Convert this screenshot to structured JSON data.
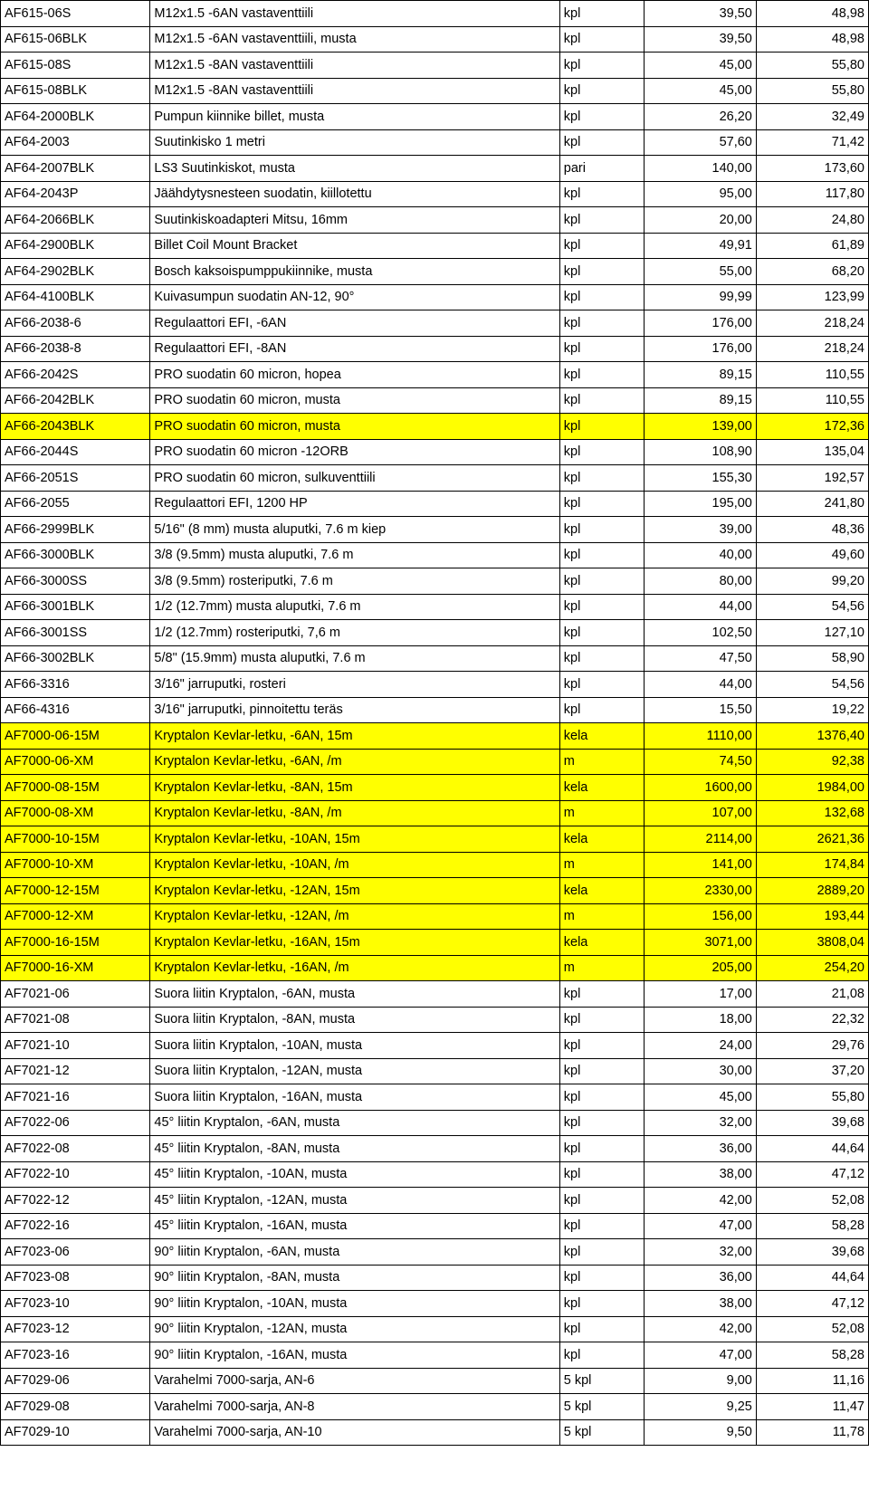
{
  "colors": {
    "highlight": "#ffff00",
    "border": "#000000",
    "bg": "#ffffff",
    "text": "#000000"
  },
  "columns": {
    "widths": [
      128,
      350,
      72,
      96,
      96
    ],
    "align": [
      "left",
      "left",
      "left",
      "right",
      "right"
    ]
  },
  "rows": [
    {
      "h": 0,
      "c": [
        "AF615-06S",
        "M12x1.5 -6AN vastaventtiili",
        "kpl",
        "39,50",
        "48,98"
      ]
    },
    {
      "h": 0,
      "c": [
        "AF615-06BLK",
        "M12x1.5 -6AN vastaventtiili, musta",
        "kpl",
        "39,50",
        "48,98"
      ]
    },
    {
      "h": 0,
      "c": [
        "AF615-08S",
        "M12x1.5 -8AN vastaventtiili",
        "kpl",
        "45,00",
        "55,80"
      ]
    },
    {
      "h": 0,
      "c": [
        "AF615-08BLK",
        "M12x1.5 -8AN vastaventtiili",
        "kpl",
        "45,00",
        "55,80"
      ]
    },
    {
      "h": 0,
      "c": [
        "AF64-2000BLK",
        "Pumpun kiinnike billet, musta",
        "kpl",
        "26,20",
        "32,49"
      ]
    },
    {
      "h": 0,
      "c": [
        "AF64-2003",
        "Suutinkisko 1 metri",
        "kpl",
        "57,60",
        "71,42"
      ]
    },
    {
      "h": 0,
      "c": [
        "AF64-2007BLK",
        "LS3 Suutinkiskot, musta",
        "pari",
        "140,00",
        "173,60"
      ]
    },
    {
      "h": 0,
      "c": [
        "AF64-2043P",
        "Jäähdytysnesteen suodatin, kiillotettu",
        "kpl",
        "95,00",
        "117,80"
      ]
    },
    {
      "h": 0,
      "c": [
        "AF64-2066BLK",
        "Suutinkiskoadapteri Mitsu, 16mm",
        "kpl",
        "20,00",
        "24,80"
      ]
    },
    {
      "h": 0,
      "c": [
        "AF64-2900BLK",
        "Billet Coil Mount Bracket",
        "kpl",
        "49,91",
        "61,89"
      ]
    },
    {
      "h": 0,
      "c": [
        "AF64-2902BLK",
        "Bosch kaksoispumppukiinnike, musta",
        "kpl",
        "55,00",
        "68,20"
      ]
    },
    {
      "h": 0,
      "c": [
        "AF64-4100BLK",
        "Kuivasumpun suodatin AN-12, 90°",
        "kpl",
        "99,99",
        "123,99"
      ]
    },
    {
      "h": 0,
      "c": [
        "AF66-2038-6",
        "Regulaattori EFI, -6AN",
        "kpl",
        "176,00",
        "218,24"
      ]
    },
    {
      "h": 0,
      "c": [
        "AF66-2038-8",
        "Regulaattori EFI, -8AN",
        "kpl",
        "176,00",
        "218,24"
      ]
    },
    {
      "h": 0,
      "c": [
        "AF66-2042S",
        "PRO suodatin 60 micron, hopea",
        "kpl",
        "89,15",
        "110,55"
      ]
    },
    {
      "h": 0,
      "c": [
        "AF66-2042BLK",
        "PRO suodatin 60 micron, musta",
        "kpl",
        "89,15",
        "110,55"
      ]
    },
    {
      "h": 1,
      "c": [
        "AF66-2043BLK",
        "PRO suodatin 60 micron, musta",
        "kpl",
        "139,00",
        "172,36"
      ]
    },
    {
      "h": 0,
      "c": [
        "AF66-2044S",
        "PRO suodatin 60 micron -12ORB",
        "kpl",
        "108,90",
        "135,04"
      ]
    },
    {
      "h": 0,
      "c": [
        "AF66-2051S",
        "PRO suodatin 60 micron, sulkuventtiili",
        "kpl",
        "155,30",
        "192,57"
      ]
    },
    {
      "h": 0,
      "c": [
        "AF66-2055",
        "Regulaattori EFI, 1200 HP",
        "kpl",
        "195,00",
        "241,80"
      ]
    },
    {
      "h": 0,
      "c": [
        "AF66-2999BLK",
        "5/16\" (8 mm) musta aluputki, 7.6 m kiep",
        "kpl",
        "39,00",
        "48,36"
      ]
    },
    {
      "h": 0,
      "c": [
        "AF66-3000BLK",
        "3/8 (9.5mm) musta aluputki, 7.6 m",
        "kpl",
        "40,00",
        "49,60"
      ]
    },
    {
      "h": 0,
      "c": [
        "AF66-3000SS",
        "3/8 (9.5mm) rosteriputki, 7.6 m",
        "kpl",
        "80,00",
        "99,20"
      ]
    },
    {
      "h": 0,
      "c": [
        "AF66-3001BLK",
        "1/2 (12.7mm) musta aluputki, 7.6 m",
        "kpl",
        "44,00",
        "54,56"
      ]
    },
    {
      "h": 0,
      "c": [
        "AF66-3001SS",
        "1/2 (12.7mm) rosteriputki, 7,6 m",
        "kpl",
        "102,50",
        "127,10"
      ]
    },
    {
      "h": 0,
      "c": [
        "AF66-3002BLK",
        "5/8\" (15.9mm) musta aluputki, 7.6 m",
        "kpl",
        "47,50",
        "58,90"
      ]
    },
    {
      "h": 0,
      "c": [
        "AF66-3316",
        "3/16\" jarruputki, rosteri",
        "kpl",
        "44,00",
        "54,56"
      ]
    },
    {
      "h": 0,
      "c": [
        "AF66-4316",
        "3/16\" jarruputki, pinnoitettu teräs",
        "kpl",
        "15,50",
        "19,22"
      ]
    },
    {
      "h": 1,
      "c": [
        "AF7000-06-15M",
        "Kryptalon Kevlar-letku, -6AN, 15m",
        "kela",
        "1110,00",
        "1376,40"
      ]
    },
    {
      "h": 1,
      "c": [
        "AF7000-06-XM",
        "Kryptalon Kevlar-letku, -6AN, /m",
        "m",
        "74,50",
        "92,38"
      ]
    },
    {
      "h": 1,
      "c": [
        "AF7000-08-15M",
        "Kryptalon Kevlar-letku, -8AN, 15m",
        "kela",
        "1600,00",
        "1984,00"
      ]
    },
    {
      "h": 1,
      "c": [
        "AF7000-08-XM",
        "Kryptalon Kevlar-letku, -8AN, /m",
        "m",
        "107,00",
        "132,68"
      ]
    },
    {
      "h": 1,
      "c": [
        "AF7000-10-15M",
        "Kryptalon Kevlar-letku, -10AN, 15m",
        "kela",
        "2114,00",
        "2621,36"
      ]
    },
    {
      "h": 1,
      "c": [
        "AF7000-10-XM",
        "Kryptalon Kevlar-letku, -10AN, /m",
        "m",
        "141,00",
        "174,84"
      ]
    },
    {
      "h": 1,
      "c": [
        "AF7000-12-15M",
        "Kryptalon Kevlar-letku, -12AN, 15m",
        "kela",
        "2330,00",
        "2889,20"
      ]
    },
    {
      "h": 1,
      "c": [
        "AF7000-12-XM",
        "Kryptalon Kevlar-letku, -12AN, /m",
        "m",
        "156,00",
        "193,44"
      ]
    },
    {
      "h": 1,
      "c": [
        "AF7000-16-15M",
        "Kryptalon Kevlar-letku, -16AN, 15m",
        "kela",
        "3071,00",
        "3808,04"
      ]
    },
    {
      "h": 1,
      "c": [
        "AF7000-16-XM",
        "Kryptalon Kevlar-letku, -16AN, /m",
        "m",
        "205,00",
        "254,20"
      ]
    },
    {
      "h": 0,
      "c": [
        "AF7021-06",
        "Suora liitin Kryptalon, -6AN, musta",
        "kpl",
        "17,00",
        "21,08"
      ]
    },
    {
      "h": 0,
      "c": [
        "AF7021-08",
        "Suora liitin Kryptalon, -8AN, musta",
        "kpl",
        "18,00",
        "22,32"
      ]
    },
    {
      "h": 0,
      "c": [
        "AF7021-10",
        "Suora liitin Kryptalon, -10AN, musta",
        "kpl",
        "24,00",
        "29,76"
      ]
    },
    {
      "h": 0,
      "c": [
        "AF7021-12",
        "Suora liitin Kryptalon, -12AN, musta",
        "kpl",
        "30,00",
        "37,20"
      ]
    },
    {
      "h": 0,
      "c": [
        "AF7021-16",
        "Suora liitin Kryptalon, -16AN, musta",
        "kpl",
        "45,00",
        "55,80"
      ]
    },
    {
      "h": 0,
      "c": [
        "AF7022-06",
        "45° liitin Kryptalon, -6AN, musta",
        "kpl",
        "32,00",
        "39,68"
      ]
    },
    {
      "h": 0,
      "c": [
        "AF7022-08",
        "45° liitin Kryptalon, -8AN, musta",
        "kpl",
        "36,00",
        "44,64"
      ]
    },
    {
      "h": 0,
      "c": [
        "AF7022-10",
        "45° liitin Kryptalon, -10AN, musta",
        "kpl",
        "38,00",
        "47,12"
      ]
    },
    {
      "h": 0,
      "c": [
        "AF7022-12",
        "45° liitin Kryptalon, -12AN, musta",
        "kpl",
        "42,00",
        "52,08"
      ]
    },
    {
      "h": 0,
      "c": [
        "AF7022-16",
        "45° liitin Kryptalon, -16AN, musta",
        "kpl",
        "47,00",
        "58,28"
      ]
    },
    {
      "h": 0,
      "c": [
        "AF7023-06",
        "90° liitin Kryptalon, -6AN, musta",
        "kpl",
        "32,00",
        "39,68"
      ]
    },
    {
      "h": 0,
      "c": [
        "AF7023-08",
        "90° liitin Kryptalon, -8AN, musta",
        "kpl",
        "36,00",
        "44,64"
      ]
    },
    {
      "h": 0,
      "c": [
        "AF7023-10",
        "90° liitin Kryptalon, -10AN, musta",
        "kpl",
        "38,00",
        "47,12"
      ]
    },
    {
      "h": 0,
      "c": [
        "AF7023-12",
        "90° liitin Kryptalon, -12AN, musta",
        "kpl",
        "42,00",
        "52,08"
      ]
    },
    {
      "h": 0,
      "c": [
        "AF7023-16",
        "90° liitin Kryptalon, -16AN, musta",
        "kpl",
        "47,00",
        "58,28"
      ]
    },
    {
      "h": 0,
      "c": [
        "AF7029-06",
        "Varahelmi 7000-sarja, AN-6",
        "5 kpl",
        "9,00",
        "11,16"
      ]
    },
    {
      "h": 0,
      "c": [
        "AF7029-08",
        "Varahelmi 7000-sarja, AN-8",
        "5 kpl",
        "9,25",
        "11,47"
      ]
    },
    {
      "h": 0,
      "c": [
        "AF7029-10",
        "Varahelmi 7000-sarja, AN-10",
        "5 kpl",
        "9,50",
        "11,78"
      ]
    }
  ]
}
